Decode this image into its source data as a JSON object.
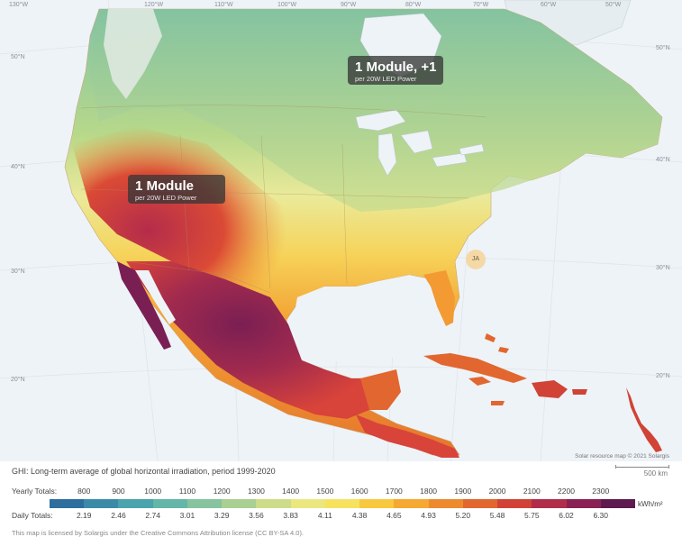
{
  "map": {
    "longitude_labels": [
      "130°W",
      "120°W",
      "110°W",
      "100°W",
      "90°W",
      "80°W",
      "70°W",
      "60°W",
      "50°W"
    ],
    "latitude_labels_left": [
      "50°N",
      "40°N",
      "30°N",
      "20°N"
    ],
    "latitude_labels_right": [
      "50°N",
      "40°N",
      "30°N",
      "20°N"
    ]
  },
  "callouts": [
    {
      "title": "1 Module, +1",
      "subtitle": "per 20W LED Power"
    },
    {
      "title": "1 Module",
      "subtitle": "per 20W LED Power"
    }
  ],
  "city_marker": "JA",
  "attribution": "Solar resource map © 2021 Solargis",
  "scale_label": "500 km",
  "caption": "GHI: Long-term average of global horizontal irradiation, period 1999-2020",
  "legend": {
    "yearly_title": "Yearly Totals:",
    "daily_title": "Daily Totals:",
    "yearly": [
      "800",
      "900",
      "1000",
      "1100",
      "1200",
      "1300",
      "1400",
      "1500",
      "1600",
      "1700",
      "1800",
      "1900",
      "2000",
      "2100",
      "2200",
      "2300"
    ],
    "daily": [
      "2.19",
      "2.46",
      "2.74",
      "3.01",
      "3.29",
      "3.56",
      "3.83",
      "4.11",
      "4.38",
      "4.65",
      "4.93",
      "5.20",
      "5.48",
      "5.75",
      "6.02",
      "6.30"
    ],
    "unit": "kWh/m²",
    "colors": [
      "#2e6e9e",
      "#3b8ba8",
      "#4aa3ad",
      "#63b6a8",
      "#86c39e",
      "#a9cf92",
      "#cddc88",
      "#ebe77f",
      "#f6e25e",
      "#f8c83f",
      "#f5a832",
      "#ee8a2e",
      "#e2662f",
      "#d04336",
      "#b12e4a",
      "#8a2155",
      "#5e1a4f"
    ]
  },
  "license": "This map is licensed by Solargis under the Creative Commons Attribution license (CC BY-SA 4.0)."
}
